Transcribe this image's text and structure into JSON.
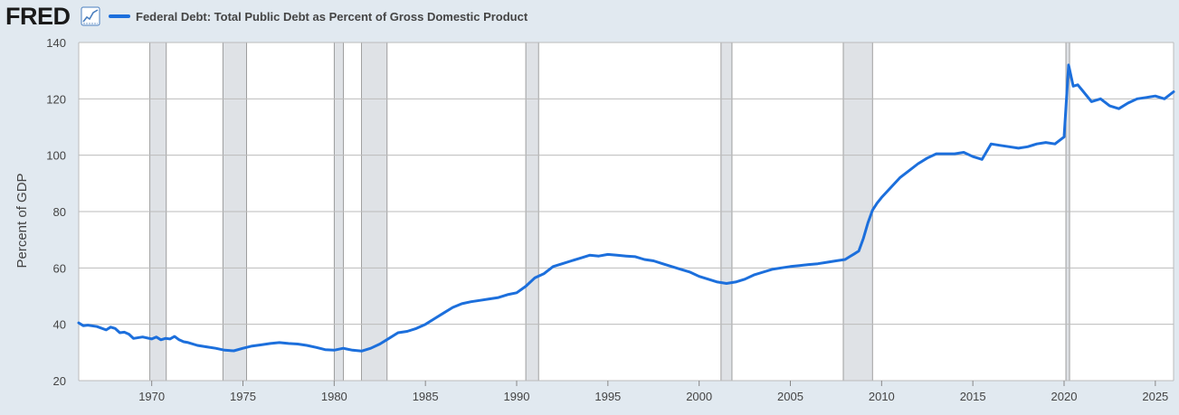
{
  "header": {
    "logo_text": "FRED",
    "graph_icon": "line-chart-icon",
    "legend_label": "Federal Debt: Total Public Debt as Percent of Gross Domestic Product"
  },
  "colors": {
    "series": "#1c6fdc",
    "recession": "#dfe2e6",
    "background": "#e1e9f0",
    "plot": "#ffffff",
    "grid": "#bbbbbb"
  },
  "chart_data": {
    "type": "line",
    "title": "Federal Debt: Total Public Debt as Percent of Gross Domestic Product",
    "xlabel": "",
    "ylabel": "Percent of GDP",
    "xlim": [
      1966.0,
      2026.0
    ],
    "ylim": [
      20,
      140
    ],
    "yticks": [
      20,
      40,
      60,
      80,
      100,
      120,
      140
    ],
    "xticks": [
      1970,
      1975,
      1980,
      1985,
      1990,
      1995,
      2000,
      2005,
      2010,
      2015,
      2020,
      2025
    ],
    "grid": true,
    "legend": "top-left",
    "recessions": [
      [
        1969.9,
        1970.8
      ],
      [
        1973.9,
        1975.2
      ],
      [
        1980.0,
        1980.5
      ],
      [
        1981.5,
        1982.9
      ],
      [
        1990.5,
        1991.2
      ],
      [
        2001.2,
        2001.8
      ],
      [
        2007.9,
        2009.5
      ],
      [
        2020.1,
        2020.3
      ]
    ],
    "series": [
      {
        "name": "Federal Debt: Total Public Debt as Percent of Gross Domestic Product",
        "x": [
          1966.0,
          1966.25,
          1966.5,
          1967.0,
          1967.5,
          1967.75,
          1968.0,
          1968.25,
          1968.5,
          1968.75,
          1969.0,
          1969.5,
          1970.0,
          1970.25,
          1970.5,
          1970.75,
          1971.0,
          1971.25,
          1971.5,
          1971.75,
          1972.0,
          1972.5,
          1973.0,
          1973.5,
          1974.0,
          1974.5,
          1975.0,
          1975.5,
          1976.0,
          1976.5,
          1977.0,
          1977.5,
          1978.0,
          1978.5,
          1979.0,
          1979.5,
          1980.0,
          1980.5,
          1981.0,
          1981.5,
          1982.0,
          1982.5,
          1983.0,
          1983.5,
          1984.0,
          1984.5,
          1985.0,
          1985.5,
          1986.0,
          1986.5,
          1987.0,
          1987.5,
          1988.0,
          1988.5,
          1989.0,
          1989.5,
          1990.0,
          1990.5,
          1991.0,
          1991.5,
          1992.0,
          1992.5,
          1993.0,
          1993.5,
          1994.0,
          1994.5,
          1995.0,
          1995.5,
          1996.0,
          1996.5,
          1997.0,
          1997.5,
          1998.0,
          1998.5,
          1999.0,
          1999.5,
          2000.0,
          2000.5,
          2001.0,
          2001.5,
          2002.0,
          2002.5,
          2003.0,
          2003.5,
          2004.0,
          2004.5,
          2005.0,
          2005.5,
          2006.0,
          2006.5,
          2007.0,
          2007.5,
          2008.0,
          2008.25,
          2008.5,
          2008.75,
          2009.0,
          2009.25,
          2009.5,
          2009.75,
          2010.0,
          2010.5,
          2011.0,
          2011.5,
          2012.0,
          2012.5,
          2013.0,
          2013.5,
          2014.0,
          2014.5,
          2015.0,
          2015.5,
          2016.0,
          2016.5,
          2017.0,
          2017.5,
          2018.0,
          2018.5,
          2019.0,
          2019.5,
          2020.0,
          2020.25,
          2020.5,
          2020.75,
          2021.0,
          2021.5,
          2022.0,
          2022.5,
          2023.0,
          2023.5,
          2024.0,
          2024.5,
          2025.0,
          2025.5,
          2026.0
        ],
        "values": [
          40.5,
          39.5,
          39.7,
          39.2,
          38.0,
          39.0,
          38.5,
          37.0,
          37.2,
          36.5,
          35.0,
          35.5,
          34.8,
          35.5,
          34.5,
          35.0,
          34.8,
          35.7,
          34.5,
          33.8,
          33.5,
          32.5,
          32.0,
          31.5,
          30.8,
          30.6,
          31.5,
          32.3,
          32.7,
          33.2,
          33.5,
          33.2,
          33.0,
          32.5,
          31.8,
          31.0,
          30.8,
          31.5,
          30.8,
          30.5,
          31.5,
          33.0,
          35.0,
          37.0,
          37.5,
          38.5,
          40.0,
          42.0,
          44.0,
          46.0,
          47.3,
          48.0,
          48.5,
          49.0,
          49.5,
          50.5,
          51.2,
          53.5,
          56.5,
          58.0,
          60.5,
          61.5,
          62.5,
          63.5,
          64.5,
          64.2,
          64.8,
          64.5,
          64.2,
          64.0,
          63.0,
          62.5,
          61.5,
          60.5,
          59.5,
          58.5,
          57.0,
          56.0,
          55.0,
          54.5,
          55.0,
          56.0,
          57.5,
          58.5,
          59.5,
          60.0,
          60.5,
          60.8,
          61.2,
          61.5,
          62.0,
          62.5,
          63.0,
          64.0,
          65.0,
          66.0,
          70.5,
          76.0,
          80.5,
          83.0,
          85.0,
          88.5,
          92.0,
          94.5,
          97.0,
          99.0,
          100.5,
          100.5,
          100.5,
          101.0,
          99.5,
          98.5,
          104.0,
          103.5,
          103.0,
          102.5,
          103.0,
          104.0,
          104.5,
          104.0,
          106.5,
          132.0,
          124.5,
          125.0,
          123.0,
          119.0,
          120.0,
          117.5,
          116.5,
          118.5,
          120.0,
          120.5,
          121.0,
          120.0,
          122.5
        ]
      }
    ]
  }
}
